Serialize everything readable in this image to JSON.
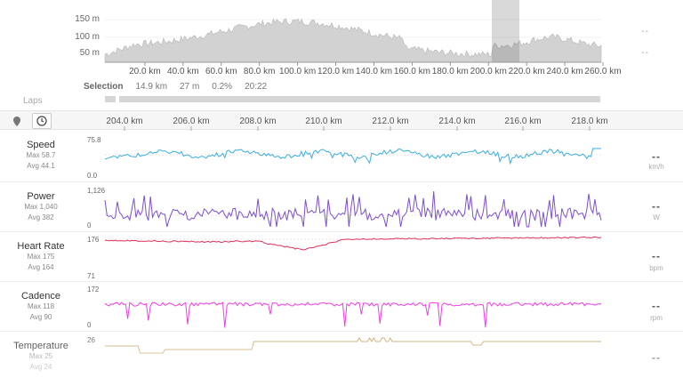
{
  "overview": {
    "y_ticks": [
      "150 m",
      "100 m",
      "50 m"
    ],
    "x_ticks": [
      "20.0 km",
      "40.0 km",
      "60.0 km",
      "80.0 km",
      "100.0 km",
      "120.0 km",
      "140.0 km",
      "160.0 km",
      "180.0 km",
      "200.0 km",
      "220.0 km",
      "240.0 km",
      "260.0 km"
    ],
    "dashes": [
      "--",
      "--"
    ]
  },
  "selection": {
    "label": "Selection",
    "distance": "14.9 km",
    "elevation": "27 m",
    "grade": "0.2%",
    "time": "20:22"
  },
  "laps": {
    "label": "Laps"
  },
  "km_axis": [
    "204.0 km",
    "206.0 km",
    "208.0 km",
    "210.0 km",
    "212.0 km",
    "214.0 km",
    "216.0 km",
    "218.0 km"
  ],
  "rows": [
    {
      "key": "speed",
      "name": "Speed",
      "max": "Max 58.7",
      "avg": "Avg 44.1",
      "scale_max": "75.8",
      "scale_min": "0.0",
      "value": "--",
      "unit": "km/h",
      "color": "#3aaee0"
    },
    {
      "key": "power",
      "name": "Power",
      "max": "Max 1,040",
      "avg": "Avg 382",
      "scale_max": "1,126",
      "scale_min": "0",
      "value": "--",
      "unit": "W",
      "color": "#7c4fd0"
    },
    {
      "key": "heartrate",
      "name": "Heart Rate",
      "max": "Max 175",
      "avg": "Avg 164",
      "scale_max": "176",
      "scale_min": "71",
      "value": "--",
      "unit": "bpm",
      "color": "#e0305a"
    },
    {
      "key": "cadence",
      "name": "Cadence",
      "max": "Max 118",
      "avg": "Avg 90",
      "scale_max": "172",
      "scale_min": "0",
      "value": "--",
      "unit": "rpm",
      "color": "#ee3ee6"
    },
    {
      "key": "temperature",
      "name": "Temperature",
      "max": "Max 25",
      "avg": "Avg 24",
      "scale_max": "26",
      "scale_min": "",
      "value": "--",
      "unit": "",
      "color": "#c8a86a"
    }
  ]
}
